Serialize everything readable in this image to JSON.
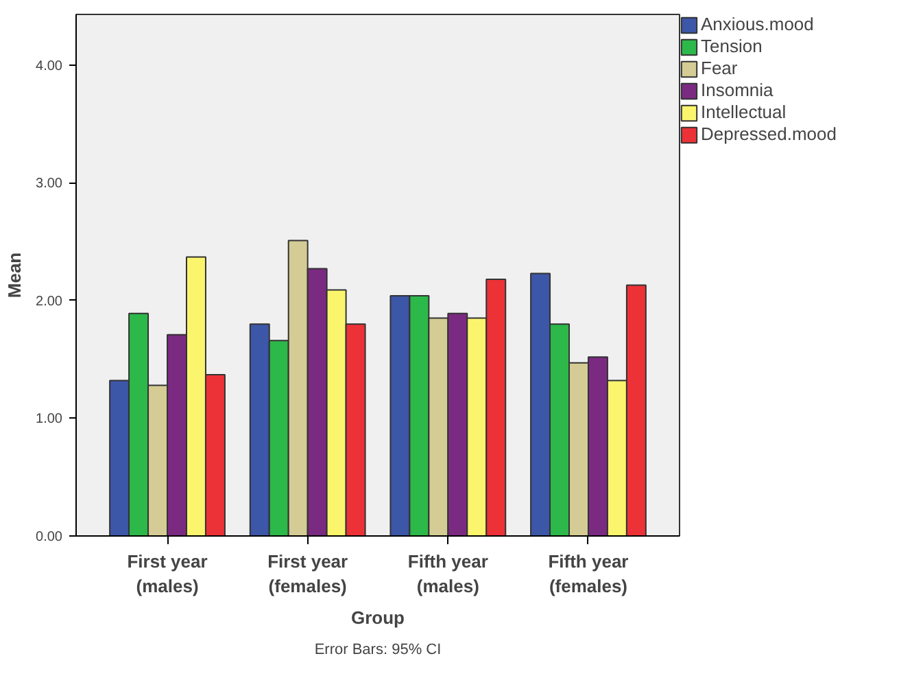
{
  "chart_data": {
    "type": "bar",
    "xlabel": "Group",
    "ylabel": "Mean",
    "categories": [
      "First year (males)",
      "First year (females)",
      "Fifth year (males)",
      "Fifth year (females)"
    ],
    "series": [
      {
        "name": "Anxious.mood",
        "color": "#3c56a8",
        "values": [
          1.32,
          1.8,
          2.04,
          2.23
        ]
      },
      {
        "name": "Tension",
        "color": "#2db84a",
        "values": [
          1.89,
          1.66,
          2.04,
          1.8
        ]
      },
      {
        "name": "Fear",
        "color": "#d4cc94",
        "values": [
          1.28,
          2.51,
          1.85,
          1.47
        ]
      },
      {
        "name": "Insomnia",
        "color": "#7b2a82",
        "values": [
          1.71,
          2.27,
          1.89,
          1.52
        ]
      },
      {
        "name": "Intellectual",
        "color": "#fbf56e",
        "values": [
          2.37,
          2.09,
          1.85,
          1.32
        ]
      },
      {
        "name": "Depressed.mood",
        "color": "#ec3237",
        "values": [
          1.37,
          1.8,
          2.18,
          2.13
        ]
      }
    ],
    "ylim": [
      0,
      4.43
    ],
    "yticks": [
      {
        "value": 0,
        "label": "0.00"
      },
      {
        "value": 1,
        "label": "1.00"
      },
      {
        "value": 2,
        "label": "2.00"
      },
      {
        "value": 3,
        "label": "3.00"
      },
      {
        "value": 4,
        "label": "4.00"
      }
    ],
    "legend": "right",
    "annotations": [
      "Error Bars: 95% CI"
    ]
  }
}
